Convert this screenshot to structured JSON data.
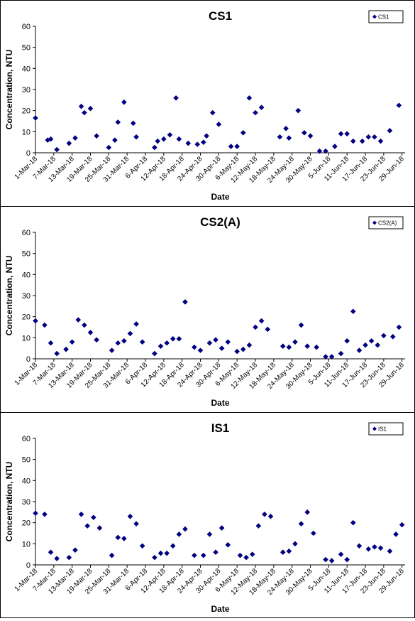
{
  "chart_data": [
    {
      "type": "scatter",
      "title": "CS1",
      "xlabel": "Date",
      "ylabel": "Concentration, NTU",
      "ylim": [
        0,
        60
      ],
      "yticks": [
        0,
        10,
        20,
        30,
        40,
        50,
        60
      ],
      "xlim": [
        "2018-03-01",
        "2018-06-30"
      ],
      "xticks": [
        "1-Mar-18",
        "7-Mar-18",
        "13-Mar-18",
        "19-Mar-18",
        "25-Mar-18",
        "31-Mar-18",
        "6-Apr-18",
        "12-Apr-18",
        "18-Apr-18",
        "24-Apr-18",
        "30-Apr-18",
        "6-May-18",
        "12-May-18",
        "18-May-18",
        "24-May-18",
        "30-May-18",
        "5-Jun-18",
        "11-Jun-18",
        "17-Jun-18",
        "23-Jun-18",
        "29-Jun-18"
      ],
      "legend_position": "top-right",
      "grid": false,
      "marker_color": "#000080",
      "series": [
        {
          "name": "CS1",
          "points": [
            [
              "2018-03-01",
              16.5
            ],
            [
              "2018-03-05",
              6
            ],
            [
              "2018-03-06",
              6.5
            ],
            [
              "2018-03-08",
              1.5
            ],
            [
              "2018-03-12",
              4.5
            ],
            [
              "2018-03-14",
              7
            ],
            [
              "2018-03-16",
              22
            ],
            [
              "2018-03-17",
              19
            ],
            [
              "2018-03-19",
              21
            ],
            [
              "2018-03-21",
              8
            ],
            [
              "2018-03-25",
              2.5
            ],
            [
              "2018-03-27",
              6
            ],
            [
              "2018-03-28",
              14.5
            ],
            [
              "2018-03-30",
              24
            ],
            [
              "2018-04-02",
              14
            ],
            [
              "2018-04-03",
              7.5
            ],
            [
              "2018-04-09",
              2.5
            ],
            [
              "2018-04-10",
              5.5
            ],
            [
              "2018-04-12",
              6.5
            ],
            [
              "2018-04-14",
              8.5
            ],
            [
              "2018-04-16",
              26
            ],
            [
              "2018-04-17",
              6.5
            ],
            [
              "2018-04-20",
              4.5
            ],
            [
              "2018-04-23",
              4
            ],
            [
              "2018-04-25",
              5
            ],
            [
              "2018-04-26",
              8
            ],
            [
              "2018-04-28",
              19
            ],
            [
              "2018-04-30",
              13.5
            ],
            [
              "2018-05-04",
              3
            ],
            [
              "2018-05-06",
              3
            ],
            [
              "2018-05-08",
              9.5
            ],
            [
              "2018-05-10",
              26
            ],
            [
              "2018-05-12",
              19
            ],
            [
              "2018-05-14",
              21.5
            ],
            [
              "2018-05-20",
              7.5
            ],
            [
              "2018-05-22",
              11.5
            ],
            [
              "2018-05-23",
              7
            ],
            [
              "2018-05-26",
              20
            ],
            [
              "2018-05-28",
              9.5
            ],
            [
              "2018-05-30",
              8
            ],
            [
              "2018-06-02",
              0.8
            ],
            [
              "2018-06-04",
              0.8
            ],
            [
              "2018-06-07",
              3
            ],
            [
              "2018-06-09",
              9
            ],
            [
              "2018-06-11",
              9
            ],
            [
              "2018-06-13",
              5.5
            ],
            [
              "2018-06-16",
              5.5
            ],
            [
              "2018-06-18",
              7.5
            ],
            [
              "2018-06-20",
              7.5
            ],
            [
              "2018-06-22",
              5.5
            ],
            [
              "2018-06-25",
              10.5
            ],
            [
              "2018-06-28",
              22.5
            ]
          ]
        }
      ]
    },
    {
      "type": "scatter",
      "title": "CS2(A)",
      "xlabel": "Date",
      "ylabel": "Concentration, NTU",
      "ylim": [
        0,
        60
      ],
      "yticks": [
        0,
        10,
        20,
        30,
        40,
        50,
        60
      ],
      "xlim": [
        "2018-03-01",
        "2018-06-30"
      ],
      "xticks": [
        "1-Mar-18",
        "7-Mar-18",
        "13-Mar-18",
        "19-Mar-18",
        "25-Mar-18",
        "31-Mar-18",
        "6-Apr-18",
        "12-Apr-18",
        "18-Apr-18",
        "24-Apr-18",
        "30-Apr-18",
        "6-May-18",
        "12-May-18",
        "18-May-18",
        "24-May-18",
        "30-May-18",
        "5-Jun-18",
        "11-Jun-18",
        "17-Jun-18",
        "23-Jun-18",
        "29-Jun-18"
      ],
      "legend_position": "top-right",
      "grid": false,
      "marker_color": "#000080",
      "series": [
        {
          "name": "CS2(A)",
          "points": [
            [
              "2018-03-01",
              18
            ],
            [
              "2018-03-04",
              16
            ],
            [
              "2018-03-06",
              7.5
            ],
            [
              "2018-03-08",
              2.5
            ],
            [
              "2018-03-11",
              4.5
            ],
            [
              "2018-03-13",
              8
            ],
            [
              "2018-03-15",
              18.5
            ],
            [
              "2018-03-17",
              16
            ],
            [
              "2018-03-19",
              12.5
            ],
            [
              "2018-03-21",
              9
            ],
            [
              "2018-03-26",
              4
            ],
            [
              "2018-03-28",
              7.5
            ],
            [
              "2018-03-30",
              8.5
            ],
            [
              "2018-04-01",
              12
            ],
            [
              "2018-04-03",
              16.5
            ],
            [
              "2018-04-05",
              8
            ],
            [
              "2018-04-09",
              2.5
            ],
            [
              "2018-04-11",
              6
            ],
            [
              "2018-04-13",
              7.5
            ],
            [
              "2018-04-15",
              9.5
            ],
            [
              "2018-04-17",
              9.5
            ],
            [
              "2018-04-19",
              27
            ],
            [
              "2018-04-22",
              5.5
            ],
            [
              "2018-04-24",
              4
            ],
            [
              "2018-04-27",
              7.5
            ],
            [
              "2018-04-29",
              9
            ],
            [
              "2018-05-01",
              5
            ],
            [
              "2018-05-03",
              8
            ],
            [
              "2018-05-06",
              3.5
            ],
            [
              "2018-05-08",
              4.5
            ],
            [
              "2018-05-10",
              6.5
            ],
            [
              "2018-05-12",
              15
            ],
            [
              "2018-05-14",
              18
            ],
            [
              "2018-05-16",
              14
            ],
            [
              "2018-05-21",
              6
            ],
            [
              "2018-05-23",
              5.5
            ],
            [
              "2018-05-25",
              8
            ],
            [
              "2018-05-27",
              16
            ],
            [
              "2018-05-29",
              6
            ],
            [
              "2018-06-01",
              5.5
            ],
            [
              "2018-06-04",
              1
            ],
            [
              "2018-06-06",
              1
            ],
            [
              "2018-06-09",
              2.5
            ],
            [
              "2018-06-11",
              8.5
            ],
            [
              "2018-06-13",
              22.5
            ],
            [
              "2018-06-15",
              4
            ],
            [
              "2018-06-17",
              6.5
            ],
            [
              "2018-06-19",
              8.5
            ],
            [
              "2018-06-21",
              6.5
            ],
            [
              "2018-06-23",
              11
            ],
            [
              "2018-06-26",
              10.5
            ],
            [
              "2018-06-28",
              15
            ]
          ]
        }
      ]
    },
    {
      "type": "scatter",
      "title": "IS1",
      "xlabel": "Date",
      "ylabel": "Concentration, NTU",
      "ylim": [
        0,
        60
      ],
      "yticks": [
        0,
        10,
        20,
        30,
        40,
        50,
        60
      ],
      "xlim": [
        "2018-03-01",
        "2018-06-30"
      ],
      "xticks": [
        "1-Mar-18",
        "7-Mar-18",
        "13-Mar-18",
        "19-Mar-18",
        "25-Mar-18",
        "31-Mar-18",
        "6-Apr-18",
        "12-Apr-18",
        "18-Apr-18",
        "24-Apr-18",
        "30-Apr-18",
        "6-May-18",
        "12-May-18",
        "18-May-18",
        "24-May-18",
        "30-May-18",
        "5-Jun-18",
        "11-Jun-18",
        "17-Jun-18",
        "23-Jun-18",
        "29-Jun-18"
      ],
      "legend_position": "top-right",
      "grid": false,
      "marker_color": "#000080",
      "series": [
        {
          "name": "IS1",
          "points": [
            [
              "2018-03-01",
              24.5
            ],
            [
              "2018-03-04",
              24
            ],
            [
              "2018-03-06",
              6
            ],
            [
              "2018-03-08",
              3
            ],
            [
              "2018-03-12",
              3.5
            ],
            [
              "2018-03-14",
              7
            ],
            [
              "2018-03-16",
              24
            ],
            [
              "2018-03-18",
              18.5
            ],
            [
              "2018-03-20",
              22.5
            ],
            [
              "2018-03-22",
              17.5
            ],
            [
              "2018-03-26",
              4.5
            ],
            [
              "2018-03-28",
              13
            ],
            [
              "2018-03-30",
              12.5
            ],
            [
              "2018-04-01",
              23
            ],
            [
              "2018-04-03",
              19.5
            ],
            [
              "2018-04-05",
              9
            ],
            [
              "2018-04-09",
              3.5
            ],
            [
              "2018-04-11",
              5.5
            ],
            [
              "2018-04-13",
              5.5
            ],
            [
              "2018-04-15",
              9
            ],
            [
              "2018-04-17",
              14.5
            ],
            [
              "2018-04-19",
              17
            ],
            [
              "2018-04-22",
              4.5
            ],
            [
              "2018-04-25",
              4.5
            ],
            [
              "2018-04-27",
              14.5
            ],
            [
              "2018-04-29",
              6
            ],
            [
              "2018-05-01",
              17.5
            ],
            [
              "2018-05-03",
              9.5
            ],
            [
              "2018-05-07",
              4.5
            ],
            [
              "2018-05-09",
              3.5
            ],
            [
              "2018-05-11",
              5
            ],
            [
              "2018-05-13",
              18.5
            ],
            [
              "2018-05-15",
              24
            ],
            [
              "2018-05-17",
              23
            ],
            [
              "2018-05-21",
              6
            ],
            [
              "2018-05-23",
              6.5
            ],
            [
              "2018-05-25",
              10
            ],
            [
              "2018-05-27",
              19.5
            ],
            [
              "2018-05-29",
              25
            ],
            [
              "2018-05-31",
              15
            ],
            [
              "2018-06-04",
              2.5
            ],
            [
              "2018-06-06",
              2
            ],
            [
              "2018-06-09",
              5
            ],
            [
              "2018-06-11",
              2.5
            ],
            [
              "2018-06-13",
              20
            ],
            [
              "2018-06-15",
              9
            ],
            [
              "2018-06-18",
              7.5
            ],
            [
              "2018-06-20",
              8.5
            ],
            [
              "2018-06-22",
              8
            ],
            [
              "2018-06-25",
              6.5
            ],
            [
              "2018-06-27",
              14.5
            ],
            [
              "2018-06-29",
              19
            ]
          ]
        }
      ]
    }
  ]
}
